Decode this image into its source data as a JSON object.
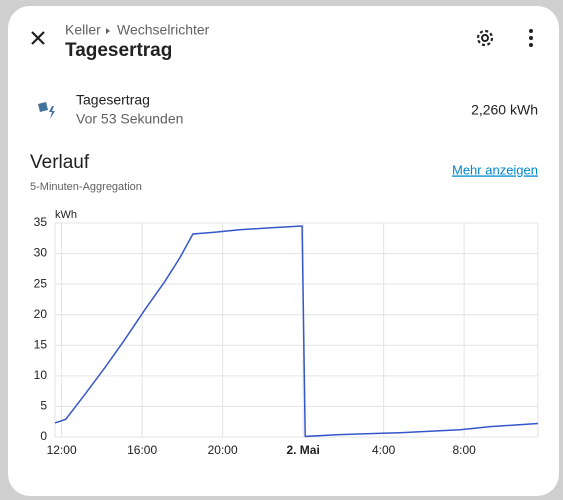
{
  "dialog": {
    "breadcrumb": [
      "Keller",
      "Wechselrichter"
    ],
    "title": "Tagesertrag",
    "entity": {
      "name": "Tagesertrag",
      "last_changed": "Vor 53 Sekunden",
      "state": "2,260 kWh"
    },
    "history": {
      "title": "Verlauf",
      "subtitle": "5-Minuten-Aggregation",
      "link": "Mehr anzeigen"
    }
  },
  "chart_data": {
    "type": "line",
    "y_label": "kWh",
    "grid": true,
    "x": [
      11.67,
      12.2,
      13.14,
      14.14,
      15.13,
      16.13,
      17.12,
      17.87,
      18.52,
      19.6,
      20.84,
      22.33,
      23.82,
      23.95,
      24.1,
      25.8,
      28.8,
      31.8,
      33.3,
      35.67
    ],
    "series": [
      {
        "name": "Tagesertrag",
        "color": "#3457c9",
        "values": [
          2.3,
          2.9,
          6.9,
          11.3,
          15.9,
          20.8,
          25.4,
          29.3,
          33.2,
          33.5,
          33.9,
          34.2,
          34.5,
          34.5,
          0.1,
          0.4,
          0.7,
          1.2,
          1.7,
          2.2
        ]
      }
    ],
    "xlim": [
      11.67,
      35.67
    ],
    "xticks": [
      {
        "value": 12,
        "label": "12:00"
      },
      {
        "value": 16,
        "label": "16:00"
      },
      {
        "value": 20,
        "label": "20:00"
      },
      {
        "value": 24,
        "label": "2. Mai"
      },
      {
        "value": 28,
        "label": "4:00"
      },
      {
        "value": 32,
        "label": "8:00"
      }
    ],
    "ylim": [
      0,
      35
    ],
    "yticks": [
      0,
      5,
      10,
      15,
      20,
      25,
      30,
      35
    ]
  }
}
